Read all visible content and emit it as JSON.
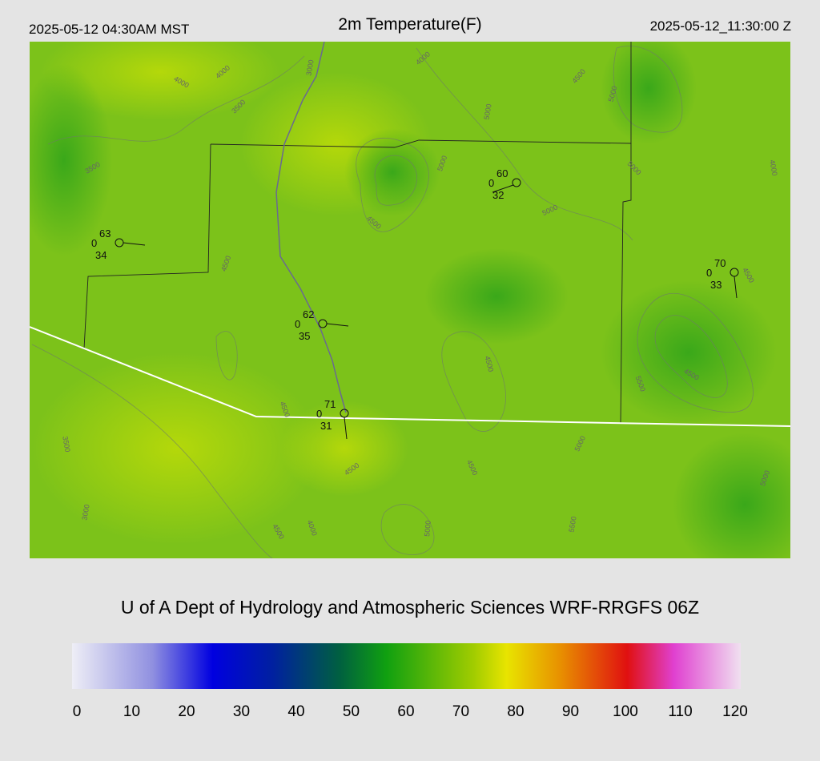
{
  "header": {
    "left": "2025-05-12 04:30AM MST",
    "title": "2m Temperature(F)",
    "right": "2025-05-12_11:30:00 Z"
  },
  "stations": [
    {
      "temp": "63",
      "wind": "0",
      "dew": "34"
    },
    {
      "temp": "60",
      "wind": "0",
      "dew": "32"
    },
    {
      "temp": "70",
      "wind": "0",
      "dew": "33"
    },
    {
      "temp": "62",
      "wind": "0",
      "dew": "35"
    },
    {
      "temp": "71",
      "wind": "0",
      "dew": "31"
    }
  ],
  "contour_labels": [
    "4000",
    "4000",
    "3000",
    "3500",
    "4000",
    "4500",
    "3500",
    "5000",
    "5000",
    "5000",
    "4500",
    "5000",
    "4000",
    "4500",
    "4500",
    "4500",
    "5000",
    "5500",
    "3500",
    "4500",
    "4500",
    "5000",
    "4500",
    "3000",
    "4000",
    "4500",
    "5000",
    "5500",
    "4500",
    "5000"
  ],
  "footer": "U of A Dept of Hydrology and Atmospheric Sciences WRF-RRGFS 06Z",
  "colorbar": {
    "lim": [
      0,
      120
    ],
    "ticks": [
      0,
      10,
      20,
      30,
      40,
      50,
      60,
      70,
      80,
      90,
      100,
      110,
      120
    ]
  }
}
